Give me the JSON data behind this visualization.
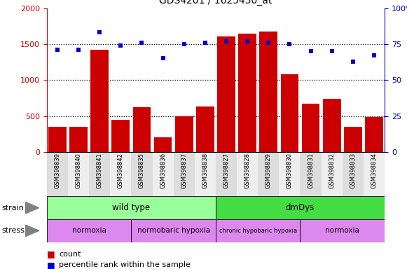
{
  "title": "GDS4201 / 1625450_at",
  "samples": [
    "GSM398839",
    "GSM398840",
    "GSM398841",
    "GSM398842",
    "GSM398835",
    "GSM398836",
    "GSM398837",
    "GSM398838",
    "GSM398827",
    "GSM398828",
    "GSM398829",
    "GSM398830",
    "GSM398831",
    "GSM398832",
    "GSM398833",
    "GSM398834"
  ],
  "counts": [
    350,
    350,
    1420,
    450,
    620,
    200,
    500,
    630,
    1610,
    1640,
    1670,
    1080,
    670,
    740,
    350,
    490
  ],
  "percentiles": [
    71,
    71,
    83,
    74,
    76,
    65,
    75,
    76,
    77,
    77,
    76,
    75,
    70,
    70,
    63,
    67
  ],
  "ylim_left": [
    0,
    2000
  ],
  "ylim_right": [
    0,
    100
  ],
  "yticks_left": [
    0,
    500,
    1000,
    1500,
    2000
  ],
  "yticks_right": [
    0,
    25,
    50,
    75,
    100
  ],
  "bar_color": "#cc0000",
  "dot_color": "#0000cc",
  "strain_groups": [
    {
      "label": "wild type",
      "start": 0,
      "end": 8,
      "color": "#99ff99"
    },
    {
      "label": "dmDys",
      "start": 8,
      "end": 16,
      "color": "#44dd44"
    }
  ],
  "stress_labels": [
    "normoxia",
    "normobaric hypoxia",
    "chronic hypobaric hypoxia",
    "normoxia"
  ],
  "stress_ranges": [
    [
      0,
      4
    ],
    [
      4,
      8
    ],
    [
      8,
      12
    ],
    [
      12,
      16
    ]
  ],
  "stress_color": "#dd88ee",
  "background_color": "#ffffff",
  "title_fontsize": 10,
  "axis_color_left": "#cc0000",
  "axis_color_right": "#0000cc",
  "tick_label_alt_colors": [
    "#dddddd",
    "#eeeeee"
  ]
}
